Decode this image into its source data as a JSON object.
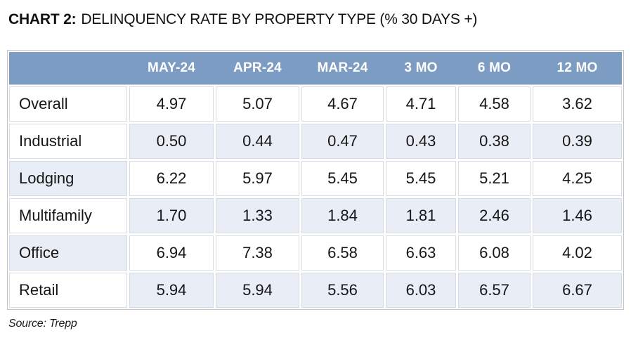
{
  "title": {
    "prefix": "CHART 2:",
    "rest": "DELINQUENCY RATE BY PROPERTY TYPE (% 30 DAYS +)"
  },
  "chart_data": {
    "type": "table",
    "title": "CHART 2: DELINQUENCY RATE BY PROPERTY TYPE (% 30 DAYS +)",
    "columns": [
      "MAY-24",
      "APR-24",
      "MAR-24",
      "3 MO",
      "6 MO",
      "12 MO"
    ],
    "rows": [
      {
        "label": "Overall",
        "values": [
          4.97,
          5.07,
          4.67,
          4.71,
          4.58,
          3.62
        ]
      },
      {
        "label": "Industrial",
        "values": [
          0.5,
          0.44,
          0.47,
          0.43,
          0.38,
          0.39
        ]
      },
      {
        "label": "Lodging",
        "values": [
          6.22,
          5.97,
          5.45,
          5.45,
          5.21,
          4.25
        ]
      },
      {
        "label": "Multifamily",
        "values": [
          1.7,
          1.33,
          1.84,
          1.81,
          2.46,
          1.46
        ]
      },
      {
        "label": "Office",
        "values": [
          6.94,
          7.38,
          6.58,
          6.63,
          6.08,
          4.02
        ]
      },
      {
        "label": "Retail",
        "values": [
          5.94,
          5.94,
          5.56,
          6.03,
          6.57,
          6.67
        ]
      }
    ],
    "value_format": "2dp",
    "units": "percent"
  },
  "source": "Source: Trepp",
  "colors": {
    "header_bg": "#7d9cc3",
    "row_tint": "#e9edf6",
    "outer_border": "#c3c3c3",
    "cell_border": "#d9dce2",
    "tint_border": "#d4dae6",
    "text": "#161616",
    "header_text": "#ffffff"
  }
}
